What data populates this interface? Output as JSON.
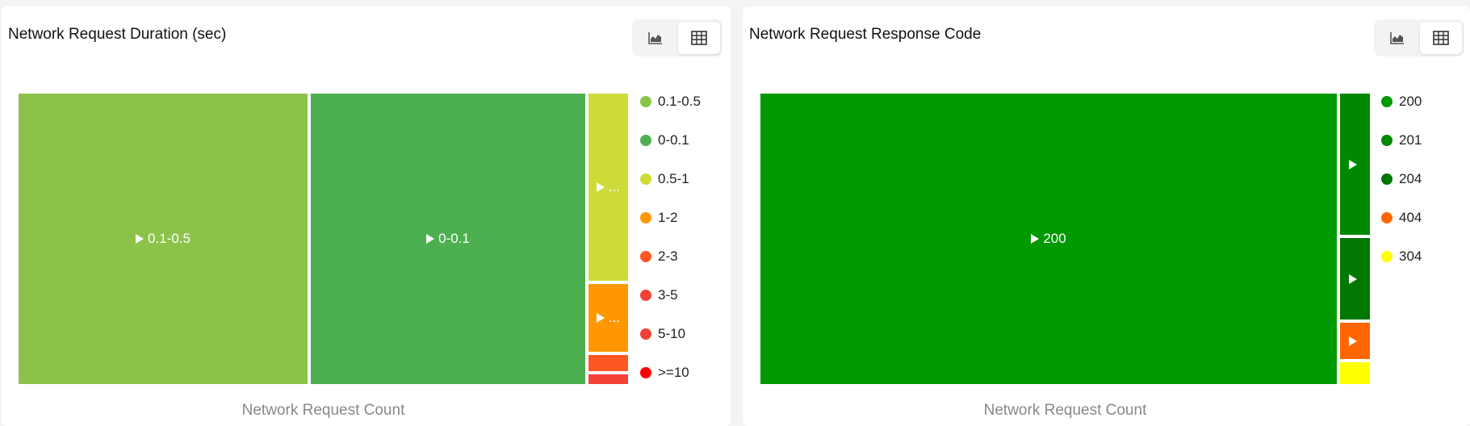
{
  "chart_data": [
    {
      "type": "treemap",
      "title": "Network Request Duration (sec)",
      "xlabel": "Network Request Count",
      "legend_position": "right",
      "toggle": {
        "chart_icon": "area-chart-icon",
        "table_icon": "table-icon",
        "active": "table"
      },
      "items": [
        {
          "label": "0.1-0.5",
          "value": 1285,
          "color": "#8bc34a",
          "cell_label": "0.1-0.5"
        },
        {
          "label": "0-0.1",
          "value": 1220,
          "color": "#4caf50",
          "cell_label": "0-0.1"
        },
        {
          "label": "0.5-1",
          "value": 116,
          "color": "#cddc39",
          "cell_label": "..."
        },
        {
          "label": "1-2",
          "value": 42,
          "color": "#ff9800",
          "cell_label": "..."
        },
        {
          "label": "2-3",
          "value": 10,
          "color": "#ff5722",
          "cell_label": ""
        },
        {
          "label": "3-5",
          "value": 6,
          "color": "#f44336",
          "cell_label": ""
        },
        {
          "label": "5-10",
          "value": 0,
          "color": "#f44336",
          "cell_label": ""
        },
        {
          "label": ">=10",
          "value": 0,
          "color": "#ff0000",
          "cell_label": ""
        }
      ]
    },
    {
      "type": "treemap",
      "title": "Network Request Response Code",
      "xlabel": "Network Request Count",
      "legend_position": "right",
      "toggle": {
        "chart_icon": "area-chart-icon",
        "table_icon": "table-icon",
        "active": "table"
      },
      "items": [
        {
          "label": "200",
          "value": 2563,
          "color": "#009900",
          "cell_label": "200"
        },
        {
          "label": "201",
          "value": 66,
          "color": "#008800",
          "cell_label": ""
        },
        {
          "label": "204",
          "value": 38,
          "color": "#007700",
          "cell_label": ""
        },
        {
          "label": "404",
          "value": 17,
          "color": "#ff6600",
          "cell_label": ""
        },
        {
          "label": "304",
          "value": 10,
          "color": "#ffff00",
          "cell_label": ""
        }
      ]
    }
  ]
}
